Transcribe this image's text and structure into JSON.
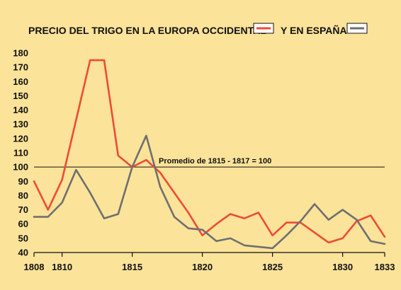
{
  "chart_data": {
    "type": "line",
    "title_part1": "PRECIO DEL TRIGO EN LA EUROPA OCCIDENTAL",
    "title_part2": "Y EN ESPAÑA",
    "xlabel": "",
    "ylabel": "",
    "x_ticks": [
      1808,
      1810,
      1815,
      1820,
      1825,
      1830,
      1833
    ],
    "y_ticks": [
      40,
      50,
      60,
      70,
      80,
      90,
      100,
      110,
      120,
      130,
      140,
      150,
      160,
      170,
      180
    ],
    "xlim": [
      1808,
      1833
    ],
    "ylim": [
      40,
      180
    ],
    "grid": false,
    "legend": "title",
    "reference_line": {
      "y": 100,
      "label": "Promedio de 1815 - 1817 = 100"
    },
    "colors": {
      "background": "#fbe39a",
      "europa": "#ef4b33",
      "espana": "#6f6f6f"
    },
    "series": [
      {
        "key": "europa",
        "x": [
          1808,
          1809,
          1810,
          1811,
          1812,
          1813,
          1814,
          1815,
          1816,
          1817,
          1818,
          1819,
          1820,
          1821,
          1822,
          1823,
          1824,
          1825,
          1826,
          1827,
          1828,
          1829,
          1830,
          1831,
          1832,
          1833
        ],
        "values": [
          90,
          70,
          91,
          133,
          175,
          175,
          108,
          100,
          105,
          96,
          82,
          68,
          52,
          60,
          67,
          64,
          68,
          52,
          61,
          61,
          54,
          47,
          50,
          62,
          66,
          51
        ]
      },
      {
        "key": "espana",
        "x": [
          1808,
          1809,
          1810,
          1811,
          1812,
          1813,
          1814,
          1815,
          1816,
          1817,
          1818,
          1819,
          1820,
          1821,
          1822,
          1823,
          1824,
          1825,
          1826,
          1827,
          1828,
          1829,
          1830,
          1831,
          1832,
          1833
        ],
        "values": [
          65,
          65,
          75,
          98,
          82,
          64,
          67,
          100,
          122,
          86,
          65,
          57,
          56,
          48,
          50,
          45,
          44,
          43,
          52,
          62,
          74,
          63,
          70,
          63,
          48,
          46
        ]
      }
    ]
  }
}
